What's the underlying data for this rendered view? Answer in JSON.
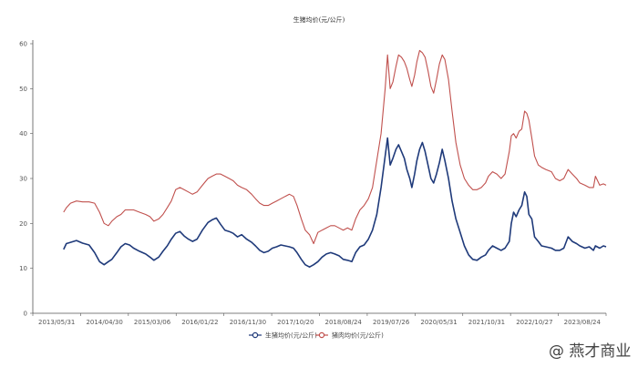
{
  "chart_data": {
    "type": "line",
    "title": "生猪均价(元/公斤)",
    "x_tick_labels": [
      "2013/05/31",
      "2014/04/30",
      "2015/03/06",
      "2016/01/22",
      "2016/11/30",
      "2017/10/20",
      "2018/08/24",
      "2019/07/26",
      "2020/05/31",
      "2021/10/31",
      "2022/10/27",
      "2023/08/24"
    ],
    "y_tick_labels": [
      "0",
      "10",
      "20",
      "30",
      "40",
      "50",
      "60"
    ],
    "ylim": [
      0,
      60
    ],
    "grid": false,
    "legend_position": "bottom",
    "series": [
      {
        "name": "生猪均价(元/公斤)",
        "color": "#1f3a7a",
        "points": [
          [
            "2013-05-31",
            14.2
          ],
          [
            "2013-06-20",
            15.5
          ],
          [
            "2013-07-20",
            15.8
          ],
          [
            "2013-09-01",
            16.2
          ],
          [
            "2013-10-15",
            15.6
          ],
          [
            "2013-12-01",
            15.2
          ],
          [
            "2014-01-10",
            13.5
          ],
          [
            "2014-02-15",
            11.5
          ],
          [
            "2014-03-20",
            10.8
          ],
          [
            "2014-04-20",
            11.5
          ],
          [
            "2014-05-15",
            12.0
          ],
          [
            "2014-06-20",
            13.5
          ],
          [
            "2014-07-20",
            14.8
          ],
          [
            "2014-08-20",
            15.5
          ],
          [
            "2014-09-20",
            15.2
          ],
          [
            "2014-10-20",
            14.5
          ],
          [
            "2014-12-01",
            13.8
          ],
          [
            "2015-01-15",
            13.2
          ],
          [
            "2015-02-15",
            12.5
          ],
          [
            "2015-03-15",
            11.8
          ],
          [
            "2015-04-20",
            12.5
          ],
          [
            "2015-05-20",
            13.8
          ],
          [
            "2015-06-20",
            15.0
          ],
          [
            "2015-07-20",
            16.5
          ],
          [
            "2015-08-20",
            17.8
          ],
          [
            "2015-09-20",
            18.2
          ],
          [
            "2015-10-20",
            17.2
          ],
          [
            "2015-11-20",
            16.5
          ],
          [
            "2015-12-20",
            16.0
          ],
          [
            "2016-01-22",
            16.5
          ],
          [
            "2016-03-01",
            18.5
          ],
          [
            "2016-04-10",
            20.2
          ],
          [
            "2016-05-10",
            20.8
          ],
          [
            "2016-06-10",
            21.2
          ],
          [
            "2016-07-10",
            19.8
          ],
          [
            "2016-08-10",
            18.5
          ],
          [
            "2016-09-10",
            18.2
          ],
          [
            "2016-10-10",
            17.8
          ],
          [
            "2016-11-10",
            17.0
          ],
          [
            "2016-12-10",
            17.5
          ],
          [
            "2017-01-15",
            16.5
          ],
          [
            "2017-02-20",
            15.8
          ],
          [
            "2017-03-20",
            15.0
          ],
          [
            "2017-04-20",
            14.0
          ],
          [
            "2017-05-20",
            13.5
          ],
          [
            "2017-06-20",
            13.8
          ],
          [
            "2017-07-20",
            14.5
          ],
          [
            "2017-08-20",
            14.8
          ],
          [
            "2017-09-20",
            15.2
          ],
          [
            "2017-10-20",
            15.0
          ],
          [
            "2017-11-20",
            14.8
          ],
          [
            "2017-12-20",
            14.5
          ],
          [
            "2018-01-15",
            13.5
          ],
          [
            "2018-02-15",
            12.0
          ],
          [
            "2018-03-15",
            10.8
          ],
          [
            "2018-04-15",
            10.3
          ],
          [
            "2018-05-15",
            10.8
          ],
          [
            "2018-06-15",
            11.5
          ],
          [
            "2018-07-15",
            12.5
          ],
          [
            "2018-08-15",
            13.2
          ],
          [
            "2018-09-15",
            13.5
          ],
          [
            "2018-10-15",
            13.2
          ],
          [
            "2018-11-15",
            12.8
          ],
          [
            "2018-12-15",
            12.0
          ],
          [
            "2019-01-15",
            11.8
          ],
          [
            "2019-02-15",
            11.5
          ],
          [
            "2019-03-15",
            13.5
          ],
          [
            "2019-04-15",
            14.8
          ],
          [
            "2019-05-15",
            15.2
          ],
          [
            "2019-06-15",
            16.5
          ],
          [
            "2019-07-15",
            18.5
          ],
          [
            "2019-08-15",
            22.0
          ],
          [
            "2019-09-15",
            28.0
          ],
          [
            "2019-10-15",
            35.0
          ],
          [
            "2019-11-01",
            39.0
          ],
          [
            "2019-11-20",
            33.0
          ],
          [
            "2019-12-10",
            34.5
          ],
          [
            "2020-01-01",
            36.5
          ],
          [
            "2020-01-20",
            37.5
          ],
          [
            "2020-02-10",
            36.0
          ],
          [
            "2020-03-01",
            34.5
          ],
          [
            "2020-03-20",
            32.0
          ],
          [
            "2020-04-10",
            30.0
          ],
          [
            "2020-04-25",
            28.0
          ],
          [
            "2020-05-15",
            31.0
          ],
          [
            "2020-05-31",
            34.0
          ],
          [
            "2020-06-20",
            36.5
          ],
          [
            "2020-07-10",
            38.0
          ],
          [
            "2020-07-30",
            36.0
          ],
          [
            "2020-08-20",
            33.0
          ],
          [
            "2020-09-10",
            30.0
          ],
          [
            "2020-09-30",
            29.0
          ],
          [
            "2020-10-20",
            31.0
          ],
          [
            "2020-11-10",
            33.5
          ],
          [
            "2020-12-01",
            36.5
          ],
          [
            "2020-12-20",
            34.0
          ],
          [
            "2021-01-15",
            30.0
          ],
          [
            "2021-02-10",
            25.0
          ],
          [
            "2021-03-10",
            21.0
          ],
          [
            "2021-04-10",
            18.0
          ],
          [
            "2021-05-10",
            15.0
          ],
          [
            "2021-06-10",
            13.0
          ],
          [
            "2021-07-10",
            12.0
          ],
          [
            "2021-08-10",
            11.8
          ],
          [
            "2021-09-10",
            12.5
          ],
          [
            "2021-10-10",
            13.0
          ],
          [
            "2021-10-31",
            14.0
          ],
          [
            "2021-11-30",
            15.0
          ],
          [
            "2021-12-31",
            14.5
          ],
          [
            "2022-01-31",
            14.0
          ],
          [
            "2022-02-28",
            14.5
          ],
          [
            "2022-03-31",
            16.0
          ],
          [
            "2022-04-15",
            20.0
          ],
          [
            "2022-05-01",
            22.5
          ],
          [
            "2022-05-20",
            21.5
          ],
          [
            "2022-06-10",
            23.0
          ],
          [
            "2022-06-30",
            24.0
          ],
          [
            "2022-07-20",
            27.0
          ],
          [
            "2022-08-05",
            26.0
          ],
          [
            "2022-08-20",
            22.0
          ],
          [
            "2022-09-10",
            21.0
          ],
          [
            "2022-09-30",
            17.0
          ],
          [
            "2022-10-27",
            16.0
          ],
          [
            "2022-11-20",
            15.0
          ],
          [
            "2022-12-20",
            14.8
          ],
          [
            "2023-01-31",
            14.5
          ],
          [
            "2023-02-28",
            14.0
          ],
          [
            "2023-03-31",
            14.0
          ],
          [
            "2023-04-30",
            14.5
          ],
          [
            "2023-05-31",
            17.0
          ],
          [
            "2023-06-30",
            16.0
          ],
          [
            "2023-07-31",
            15.5
          ],
          [
            "2023-08-24",
            15.0
          ],
          [
            "2023-09-30",
            14.5
          ],
          [
            "2023-10-31",
            14.8
          ],
          [
            "2023-11-30",
            14.0
          ],
          [
            "2023-12-15",
            15.0
          ],
          [
            "2024-01-15",
            14.5
          ],
          [
            "2024-02-10",
            15.0
          ],
          [
            "2024-03-01",
            14.8
          ]
        ]
      },
      {
        "name": "猪肉均价(元/公斤)",
        "color": "#c0504d",
        "points": [
          [
            "2013-05-31",
            22.5
          ],
          [
            "2013-06-20",
            23.5
          ],
          [
            "2013-07-20",
            24.5
          ],
          [
            "2013-09-01",
            25.0
          ],
          [
            "2013-10-15",
            24.8
          ],
          [
            "2013-12-01",
            24.8
          ],
          [
            "2014-01-10",
            24.5
          ],
          [
            "2014-02-15",
            22.5
          ],
          [
            "2014-03-20",
            20.0
          ],
          [
            "2014-04-20",
            19.5
          ],
          [
            "2014-05-15",
            20.5
          ],
          [
            "2014-06-20",
            21.5
          ],
          [
            "2014-07-20",
            22.0
          ],
          [
            "2014-08-20",
            23.0
          ],
          [
            "2014-09-20",
            23.0
          ],
          [
            "2014-10-20",
            23.0
          ],
          [
            "2014-12-01",
            22.5
          ],
          [
            "2015-01-15",
            22.0
          ],
          [
            "2015-02-15",
            21.5
          ],
          [
            "2015-03-15",
            20.5
          ],
          [
            "2015-04-20",
            21.0
          ],
          [
            "2015-05-20",
            22.0
          ],
          [
            "2015-06-20",
            23.5
          ],
          [
            "2015-07-20",
            25.0
          ],
          [
            "2015-08-20",
            27.5
          ],
          [
            "2015-09-20",
            28.0
          ],
          [
            "2015-10-20",
            27.5
          ],
          [
            "2015-11-20",
            27.0
          ],
          [
            "2015-12-20",
            26.5
          ],
          [
            "2016-01-22",
            27.0
          ],
          [
            "2016-03-01",
            28.5
          ],
          [
            "2016-04-10",
            30.0
          ],
          [
            "2016-05-10",
            30.5
          ],
          [
            "2016-06-10",
            31.0
          ],
          [
            "2016-07-10",
            31.0
          ],
          [
            "2016-08-10",
            30.5
          ],
          [
            "2016-09-10",
            30.0
          ],
          [
            "2016-10-10",
            29.5
          ],
          [
            "2016-11-10",
            28.5
          ],
          [
            "2016-12-10",
            28.0
          ],
          [
            "2017-01-15",
            27.5
          ],
          [
            "2017-02-20",
            26.5
          ],
          [
            "2017-03-20",
            25.5
          ],
          [
            "2017-04-20",
            24.5
          ],
          [
            "2017-05-20",
            24.0
          ],
          [
            "2017-06-20",
            24.0
          ],
          [
            "2017-07-20",
            24.5
          ],
          [
            "2017-08-20",
            25.0
          ],
          [
            "2017-09-20",
            25.5
          ],
          [
            "2017-10-20",
            26.0
          ],
          [
            "2017-11-20",
            26.5
          ],
          [
            "2017-12-20",
            26.0
          ],
          [
            "2018-01-15",
            24.0
          ],
          [
            "2018-02-15",
            21.0
          ],
          [
            "2018-03-15",
            18.5
          ],
          [
            "2018-04-15",
            17.5
          ],
          [
            "2018-05-15",
            15.5
          ],
          [
            "2018-06-15",
            18.0
          ],
          [
            "2018-07-15",
            18.5
          ],
          [
            "2018-08-15",
            19.0
          ],
          [
            "2018-09-15",
            19.5
          ],
          [
            "2018-10-15",
            19.5
          ],
          [
            "2018-11-15",
            19.0
          ],
          [
            "2018-12-15",
            18.5
          ],
          [
            "2019-01-15",
            19.0
          ],
          [
            "2019-02-15",
            18.5
          ],
          [
            "2019-03-15",
            21.0
          ],
          [
            "2019-04-15",
            23.0
          ],
          [
            "2019-05-15",
            24.0
          ],
          [
            "2019-06-15",
            25.5
          ],
          [
            "2019-07-15",
            28.0
          ],
          [
            "2019-08-15",
            34.0
          ],
          [
            "2019-09-15",
            40.0
          ],
          [
            "2019-10-15",
            50.0
          ],
          [
            "2019-11-01",
            57.5
          ],
          [
            "2019-11-20",
            50.0
          ],
          [
            "2019-12-10",
            51.5
          ],
          [
            "2020-01-01",
            55.0
          ],
          [
            "2020-01-20",
            57.5
          ],
          [
            "2020-02-10",
            57.0
          ],
          [
            "2020-03-01",
            56.0
          ],
          [
            "2020-03-20",
            54.5
          ],
          [
            "2020-04-10",
            52.0
          ],
          [
            "2020-04-25",
            50.5
          ],
          [
            "2020-05-15",
            53.0
          ],
          [
            "2020-05-31",
            56.0
          ],
          [
            "2020-06-20",
            58.5
          ],
          [
            "2020-07-10",
            58.0
          ],
          [
            "2020-07-30",
            57.0
          ],
          [
            "2020-08-20",
            54.0
          ],
          [
            "2020-09-10",
            50.5
          ],
          [
            "2020-09-30",
            49.0
          ],
          [
            "2020-10-20",
            52.0
          ],
          [
            "2020-11-10",
            55.5
          ],
          [
            "2020-12-01",
            57.5
          ],
          [
            "2020-12-20",
            56.5
          ],
          [
            "2021-01-15",
            52.0
          ],
          [
            "2021-02-10",
            45.0
          ],
          [
            "2021-03-10",
            38.0
          ],
          [
            "2021-04-10",
            33.0
          ],
          [
            "2021-05-10",
            30.0
          ],
          [
            "2021-06-10",
            28.5
          ],
          [
            "2021-07-10",
            27.5
          ],
          [
            "2021-08-10",
            27.5
          ],
          [
            "2021-09-10",
            28.0
          ],
          [
            "2021-10-10",
            29.0
          ],
          [
            "2021-10-31",
            30.5
          ],
          [
            "2021-11-30",
            31.5
          ],
          [
            "2021-12-31",
            31.0
          ],
          [
            "2022-01-31",
            30.0
          ],
          [
            "2022-02-28",
            31.0
          ],
          [
            "2022-03-31",
            36.0
          ],
          [
            "2022-04-15",
            39.5
          ],
          [
            "2022-05-01",
            40.0
          ],
          [
            "2022-05-20",
            39.0
          ],
          [
            "2022-06-10",
            40.5
          ],
          [
            "2022-06-30",
            41.0
          ],
          [
            "2022-07-20",
            45.0
          ],
          [
            "2022-08-05",
            44.5
          ],
          [
            "2022-08-20",
            43.0
          ],
          [
            "2022-09-10",
            39.0
          ],
          [
            "2022-09-30",
            35.0
          ],
          [
            "2022-10-27",
            33.0
          ],
          [
            "2022-11-20",
            32.5
          ],
          [
            "2022-12-20",
            32.0
          ],
          [
            "2023-01-31",
            31.5
          ],
          [
            "2023-02-28",
            30.0
          ],
          [
            "2023-03-31",
            29.5
          ],
          [
            "2023-04-30",
            30.0
          ],
          [
            "2023-05-31",
            32.0
          ],
          [
            "2023-06-30",
            31.0
          ],
          [
            "2023-07-31",
            30.0
          ],
          [
            "2023-08-24",
            29.0
          ],
          [
            "2023-09-30",
            28.5
          ],
          [
            "2023-10-31",
            28.0
          ],
          [
            "2023-11-30",
            28.0
          ],
          [
            "2023-12-15",
            30.5
          ],
          [
            "2024-01-15",
            28.5
          ],
          [
            "2024-02-10",
            28.8
          ],
          [
            "2024-03-01",
            28.5
          ]
        ]
      }
    ]
  },
  "watermark": {
    "handle": "@ 燕才商业"
  }
}
